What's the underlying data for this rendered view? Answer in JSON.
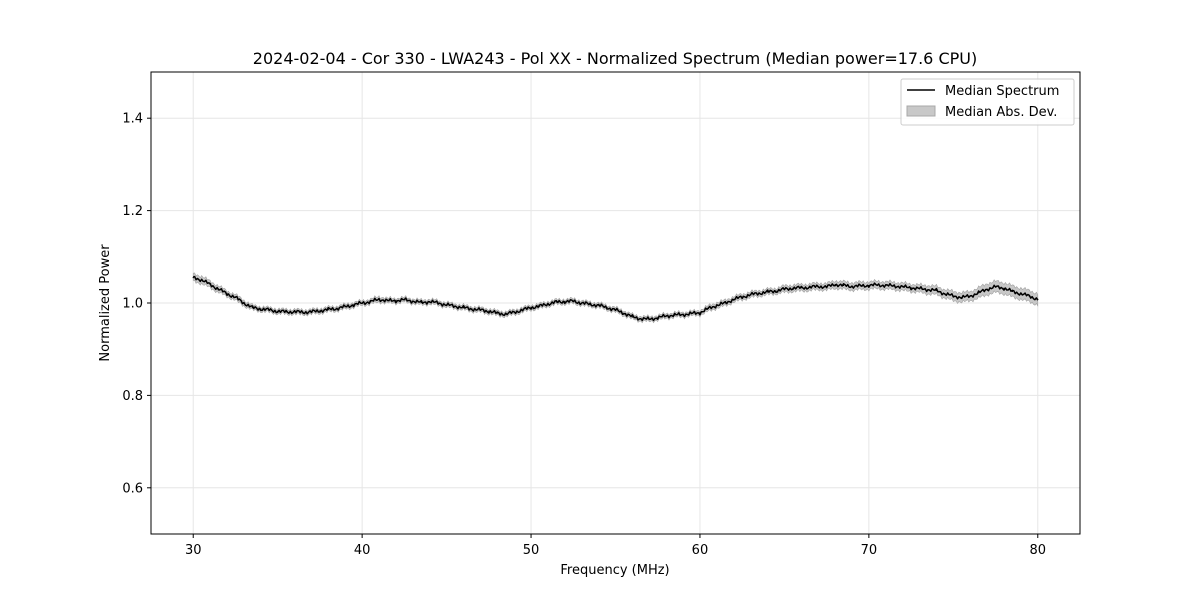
{
  "chart_data": {
    "type": "line",
    "title": "2024-02-04 - Cor 330 - LWA243 - Pol XX - Normalized Spectrum (Median power=17.6 CPU)",
    "xlabel": "Frequency (MHz)",
    "ylabel": "Normalized Power",
    "xlim": [
      27.5,
      82.5
    ],
    "ylim": [
      0.5,
      1.5
    ],
    "x_ticks": [
      30,
      40,
      50,
      60,
      70,
      80
    ],
    "x_tick_labels": [
      "30",
      "40",
      "50",
      "60",
      "70",
      "80"
    ],
    "y_ticks": [
      0.6,
      0.8,
      1.0,
      1.2,
      1.4
    ],
    "y_tick_labels": [
      "0.6",
      "0.8",
      "1.0",
      "1.2",
      "1.4"
    ],
    "grid": true,
    "legend_position": "top-right",
    "legend": [
      {
        "label": "Median Spectrum",
        "kind": "line",
        "color": "#000000"
      },
      {
        "label": "Median Abs. Dev.",
        "kind": "band",
        "color": "#c8c8c8"
      }
    ],
    "series": [
      {
        "name": "Median Spectrum",
        "color": "#000000",
        "band_color": "#c8c8c8",
        "x": [
          30.0,
          30.5,
          31.0,
          31.5,
          32.0,
          32.5,
          33.0,
          33.5,
          34.0,
          34.5,
          35.0,
          35.5,
          36.0,
          36.5,
          37.0,
          37.5,
          38.0,
          38.5,
          39.0,
          39.5,
          40.0,
          40.5,
          41.0,
          41.5,
          42.0,
          42.5,
          43.0,
          43.5,
          44.0,
          44.5,
          45.0,
          45.5,
          46.0,
          46.5,
          47.0,
          47.5,
          48.0,
          48.5,
          49.0,
          49.5,
          50.0,
          50.5,
          51.0,
          51.5,
          52.0,
          52.5,
          53.0,
          53.5,
          54.0,
          54.5,
          55.0,
          55.5,
          56.0,
          56.5,
          57.0,
          57.5,
          58.0,
          58.5,
          59.0,
          59.5,
          60.0,
          60.5,
          61.0,
          61.5,
          62.0,
          62.5,
          63.0,
          63.5,
          64.0,
          64.5,
          65.0,
          65.5,
          66.0,
          66.5,
          67.0,
          67.5,
          68.0,
          68.5,
          69.0,
          69.5,
          70.0,
          70.5,
          71.0,
          71.5,
          72.0,
          72.5,
          73.0,
          73.5,
          74.0,
          74.5,
          75.0,
          75.5,
          76.0,
          76.5,
          77.0,
          77.5,
          78.0,
          78.5,
          79.0,
          79.5,
          80.0
        ],
        "values": [
          1.055,
          1.05,
          1.04,
          1.03,
          1.02,
          1.012,
          1.0,
          0.99,
          0.987,
          0.985,
          0.982,
          0.981,
          0.981,
          0.98,
          0.981,
          0.983,
          0.986,
          0.988,
          0.992,
          0.996,
          1.0,
          1.003,
          1.008,
          1.005,
          1.005,
          1.007,
          1.004,
          1.001,
          1.003,
          1.0,
          0.996,
          0.993,
          0.99,
          0.987,
          0.985,
          0.982,
          0.978,
          0.976,
          0.98,
          0.985,
          0.99,
          0.993,
          0.998,
          1.002,
          1.003,
          1.004,
          1.0,
          0.997,
          0.995,
          0.99,
          0.985,
          0.978,
          0.97,
          0.966,
          0.965,
          0.968,
          0.972,
          0.974,
          0.975,
          0.977,
          0.979,
          0.988,
          0.995,
          1.0,
          1.008,
          1.013,
          1.018,
          1.021,
          1.024,
          1.026,
          1.03,
          1.032,
          1.033,
          1.034,
          1.036,
          1.035,
          1.04,
          1.038,
          1.036,
          1.037,
          1.038,
          1.039,
          1.038,
          1.037,
          1.035,
          1.033,
          1.031,
          1.029,
          1.027,
          1.02,
          1.015,
          1.012,
          1.015,
          1.022,
          1.03,
          1.035,
          1.032,
          1.025,
          1.02,
          1.015,
          1.008
        ],
        "mad": [
          0.008,
          0.008,
          0.007,
          0.007,
          0.006,
          0.006,
          0.006,
          0.005,
          0.005,
          0.005,
          0.005,
          0.005,
          0.005,
          0.005,
          0.005,
          0.005,
          0.005,
          0.005,
          0.005,
          0.005,
          0.005,
          0.005,
          0.006,
          0.005,
          0.005,
          0.005,
          0.005,
          0.005,
          0.005,
          0.005,
          0.005,
          0.005,
          0.005,
          0.005,
          0.005,
          0.005,
          0.005,
          0.005,
          0.005,
          0.005,
          0.005,
          0.005,
          0.005,
          0.005,
          0.005,
          0.005,
          0.005,
          0.005,
          0.005,
          0.005,
          0.005,
          0.005,
          0.005,
          0.005,
          0.005,
          0.005,
          0.005,
          0.005,
          0.005,
          0.005,
          0.005,
          0.006,
          0.006,
          0.006,
          0.006,
          0.006,
          0.006,
          0.006,
          0.006,
          0.006,
          0.007,
          0.007,
          0.007,
          0.007,
          0.007,
          0.007,
          0.008,
          0.008,
          0.008,
          0.008,
          0.008,
          0.008,
          0.008,
          0.008,
          0.008,
          0.008,
          0.008,
          0.009,
          0.009,
          0.009,
          0.01,
          0.01,
          0.01,
          0.011,
          0.012,
          0.012,
          0.012,
          0.012,
          0.012,
          0.012,
          0.012
        ]
      }
    ]
  }
}
